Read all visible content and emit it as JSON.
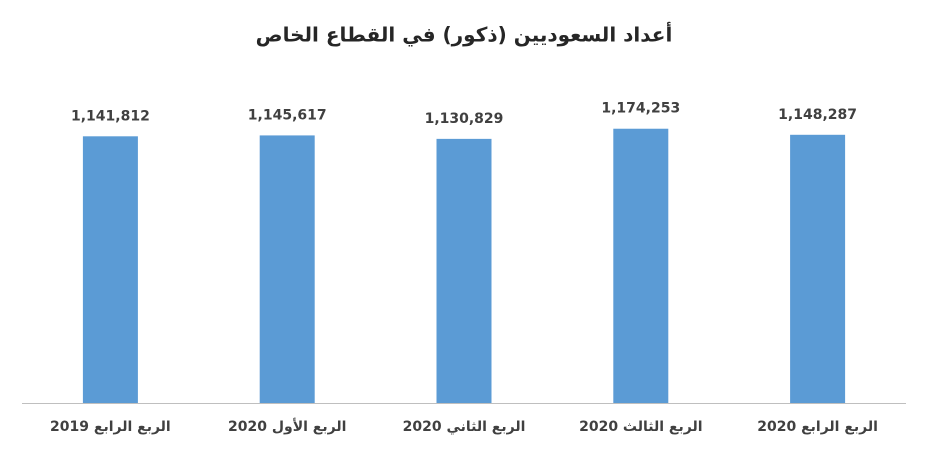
{
  "chart_data": {
    "type": "bar",
    "title": "أعداد السعوديين (ذكور) في القطاع الخاص",
    "categories": [
      "الربع الرابع 2019",
      "الربع الأول 2020",
      "الربع الثاني 2020",
      "الربع الثالث 2020",
      "الربع الرابع 2020"
    ],
    "values": [
      1141812,
      1145617,
      1130829,
      1174253,
      1148287
    ],
    "value_labels": [
      "1,141,812",
      "1,145,617",
      "1,130,829",
      "1,174,253",
      "1,148,287"
    ],
    "color": "#5b9bd5",
    "ylim": [
      0,
      1400000
    ]
  }
}
